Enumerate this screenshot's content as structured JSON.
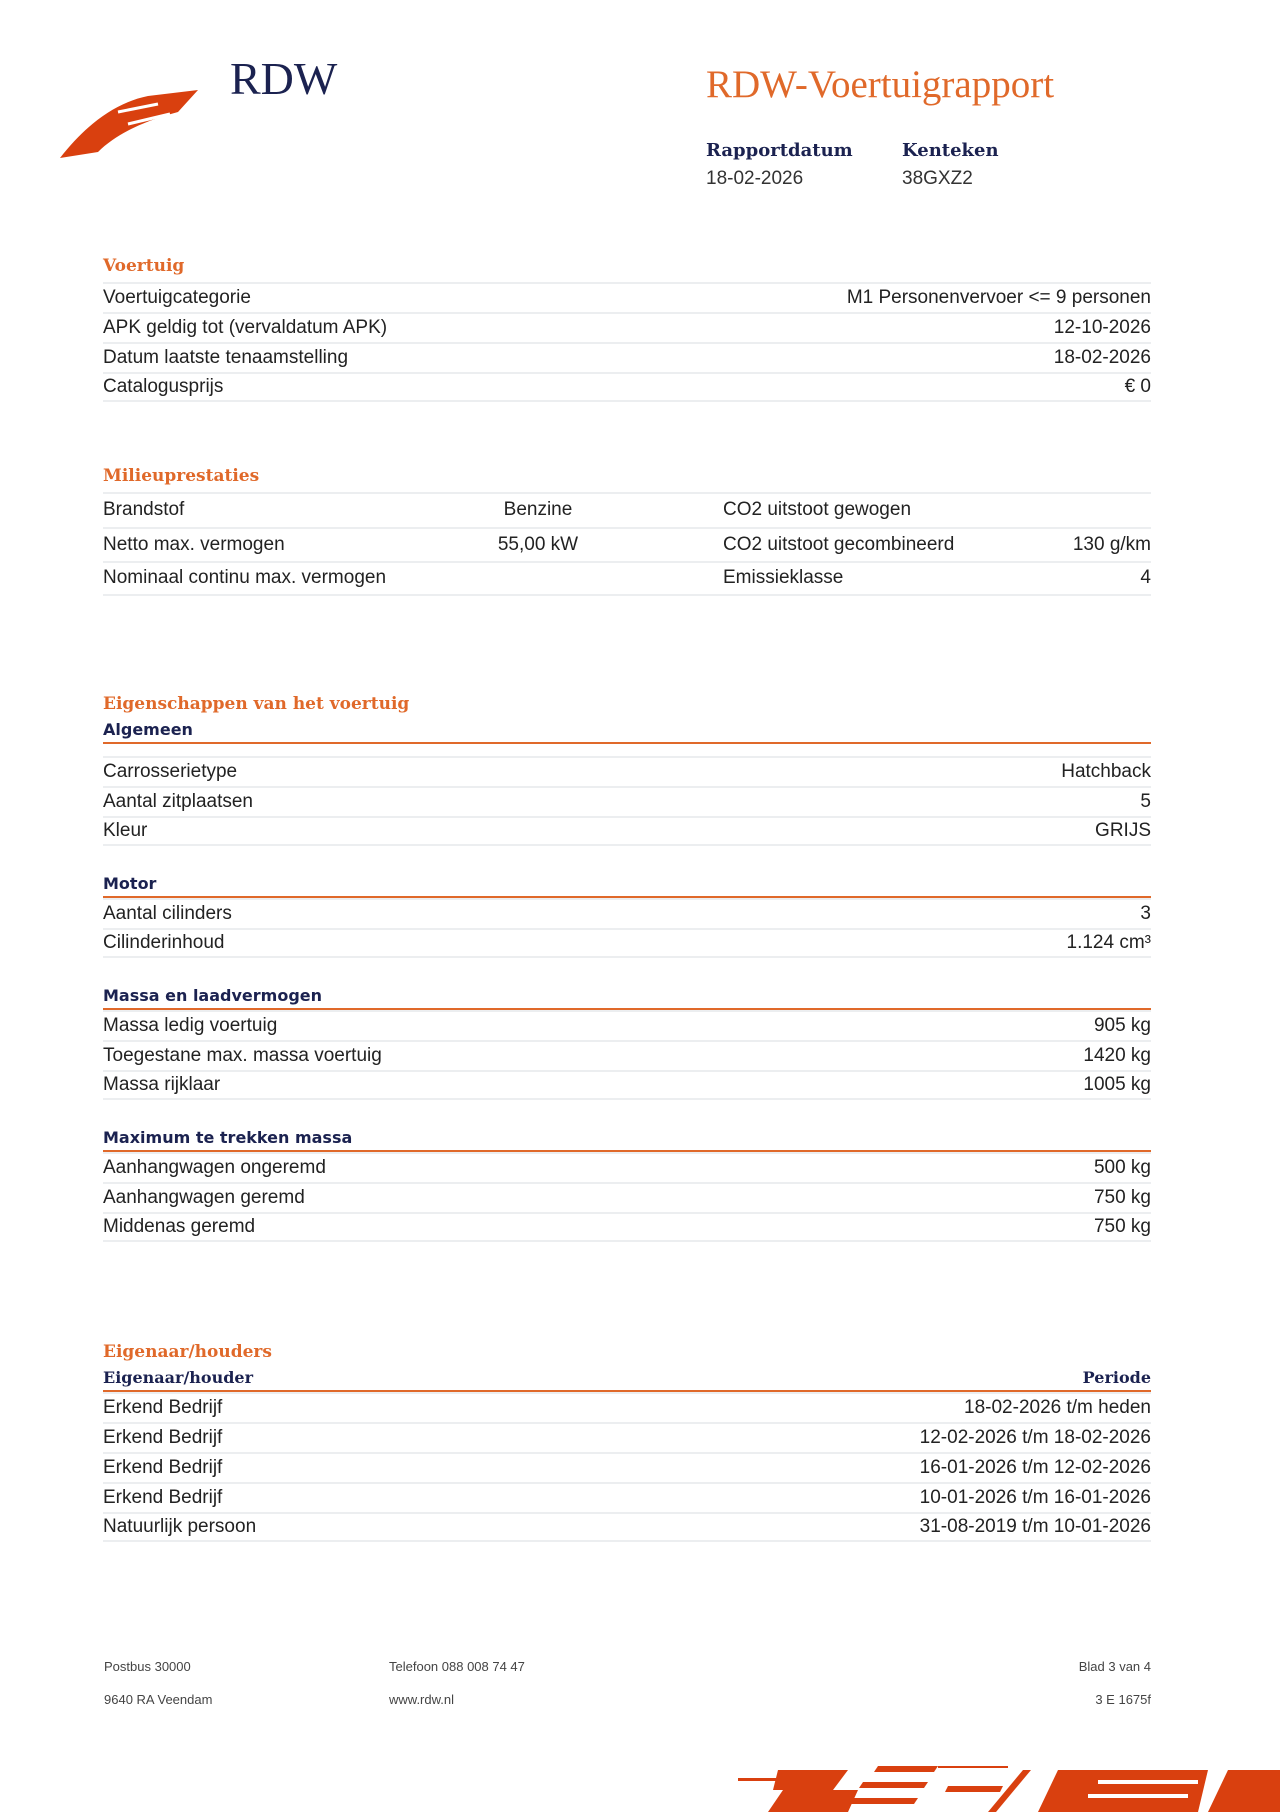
{
  "header": {
    "logo_text": "RDW",
    "title": "RDW-Voertuigrapport",
    "rapportdatum_label": "Rapportdatum",
    "rapportdatum": "18-02-2026",
    "kenteken_label": "Kenteken",
    "kenteken": "38GXZ2"
  },
  "voertuig": {
    "title": "Voertuig",
    "rows": [
      {
        "label": "Voertuigcategorie",
        "value": "M1 Personenvervoer <= 9 personen"
      },
      {
        "label": "APK geldig tot (vervaldatum APK)",
        "value": "12-10-2026"
      },
      {
        "label": "Datum laatste tenaamstelling",
        "value": "18-02-2026"
      },
      {
        "label": "Catalogusprijs",
        "value": "€ 0"
      }
    ]
  },
  "milieu": {
    "title": "Milieuprestaties",
    "rows": [
      {
        "l1": "Brandstof",
        "v1": "Benzine",
        "l2": "CO2 uitstoot gewogen",
        "v2": ""
      },
      {
        "l1": "Netto max. vermogen",
        "v1": "55,00 kW",
        "l2": "CO2 uitstoot gecombineerd",
        "v2": "130 g/km"
      },
      {
        "l1": "Nominaal continu max. vermogen",
        "v1": "",
        "l2": "Emissieklasse",
        "v2": "4"
      }
    ]
  },
  "eigenschappen": {
    "title": "Eigenschappen van het voertuig",
    "groups": [
      {
        "title": "Algemeen",
        "rows": [
          {
            "label": "Carrosserietype",
            "value": "Hatchback"
          },
          {
            "label": "Aantal zitplaatsen",
            "value": "5"
          },
          {
            "label": "Kleur",
            "value": "GRIJS"
          }
        ]
      },
      {
        "title": "Motor",
        "rows": [
          {
            "label": "Aantal cilinders",
            "value": "3"
          },
          {
            "label": "Cilinderinhoud",
            "value": "1.124 cm³"
          }
        ]
      },
      {
        "title": "Massa en laadvermogen",
        "rows": [
          {
            "label": "Massa ledig voertuig",
            "value": "905 kg"
          },
          {
            "label": "Toegestane max. massa voertuig",
            "value": "1420 kg"
          },
          {
            "label": "Massa rijklaar",
            "value": "1005 kg"
          }
        ]
      },
      {
        "title": "Maximum te trekken massa",
        "rows": [
          {
            "label": "Aanhangwagen ongeremd",
            "value": "500 kg"
          },
          {
            "label": "Aanhangwagen geremd",
            "value": "750 kg"
          },
          {
            "label": "Middenas geremd",
            "value": "750 kg"
          }
        ]
      }
    ]
  },
  "eigenaar": {
    "title": "Eigenaar/houders",
    "col1": "Eigenaar/houder",
    "col2": "Periode",
    "rows": [
      {
        "label": "Erkend Bedrijf",
        "value": "18-02-2026 t/m heden"
      },
      {
        "label": "Erkend Bedrijf",
        "value": "12-02-2026 t/m 18-02-2026"
      },
      {
        "label": "Erkend Bedrijf",
        "value": "16-01-2026 t/m 12-02-2026"
      },
      {
        "label": "Erkend Bedrijf",
        "value": "10-01-2026 t/m 16-01-2026"
      },
      {
        "label": "Natuurlijk persoon",
        "value": "31-08-2019 t/m 10-01-2026"
      }
    ]
  },
  "footer": {
    "address1": "Postbus 30000",
    "address2": "9640 RA Veendam",
    "phone": "Telefoon 088 008 74 47",
    "web": "www.rdw.nl",
    "page": "Blad 3 van 4",
    "code": "3 E 1675f"
  },
  "colors": {
    "accent": "#e0692a",
    "navy": "#1b2250",
    "logo_red": "#d9400f"
  }
}
